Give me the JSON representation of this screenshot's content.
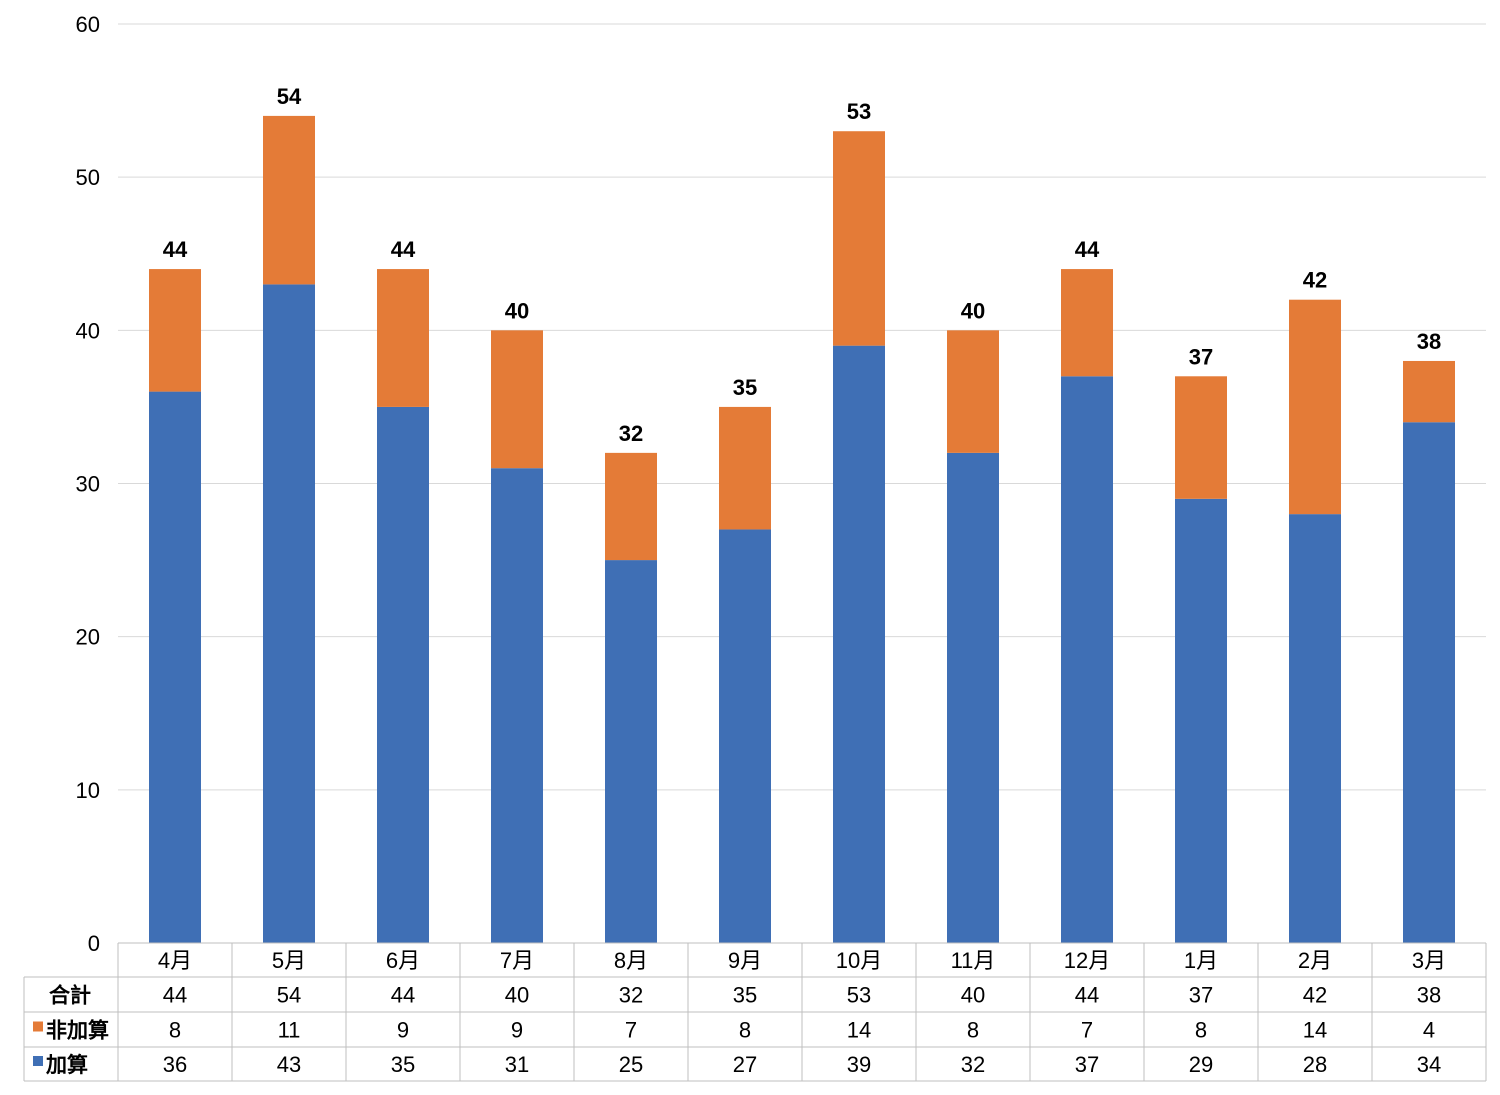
{
  "chart_data": {
    "type": "bar",
    "stacked": true,
    "categories": [
      "4月",
      "5月",
      "6月",
      "7月",
      "8月",
      "9月",
      "10月",
      "11月",
      "12月",
      "1月",
      "2月",
      "3月"
    ],
    "series": [
      {
        "name": "加算",
        "color": "#3f6fb5",
        "values": [
          36,
          43,
          35,
          31,
          25,
          27,
          39,
          32,
          37,
          29,
          28,
          34
        ]
      },
      {
        "name": "非加算",
        "color": "#e47b37",
        "values": [
          8,
          11,
          9,
          9,
          7,
          8,
          14,
          8,
          7,
          8,
          14,
          4
        ]
      }
    ],
    "totals": {
      "name": "合計",
      "values": [
        44,
        54,
        44,
        40,
        32,
        35,
        53,
        40,
        44,
        37,
        42,
        38
      ]
    },
    "ylim": [
      0,
      60
    ],
    "yticks": [
      0,
      10,
      20,
      30,
      40,
      50,
      60
    ],
    "grid": true,
    "legend": "data-table",
    "title": "",
    "xlabel": "",
    "ylabel": ""
  }
}
